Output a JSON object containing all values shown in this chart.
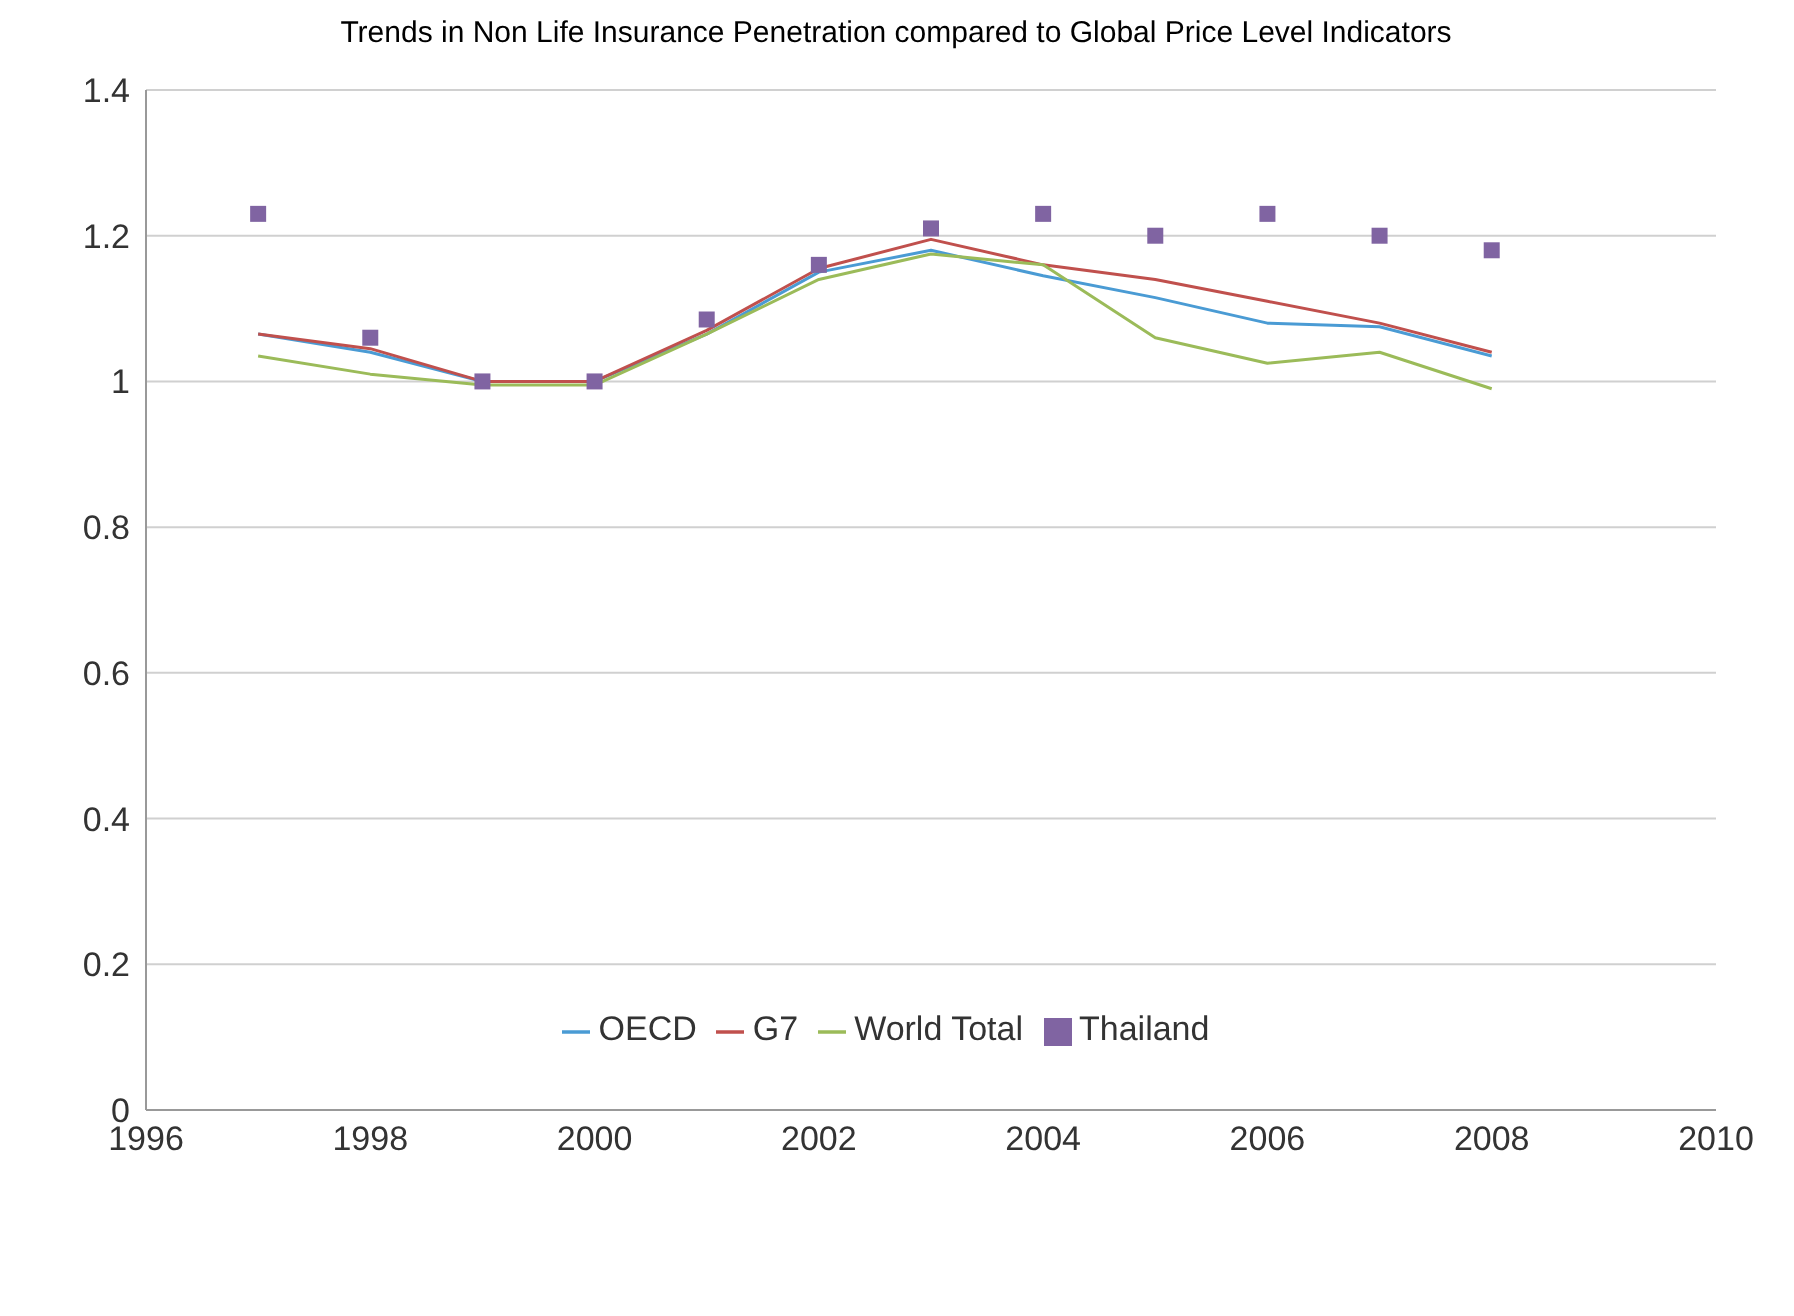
{
  "chart_data": {
    "type": "line",
    "title": "Trends in Non Life Insurance Penetration compared to Global Price Level Indicators",
    "x": [
      1997,
      1998,
      1999,
      2000,
      2001,
      2002,
      2003,
      2004,
      2005,
      2006,
      2007,
      2008
    ],
    "series": [
      {
        "name": "OECD",
        "color": "#4a9bd4",
        "values": [
          1.065,
          1.04,
          1.0,
          1.0,
          1.065,
          1.15,
          1.18,
          1.145,
          1.115,
          1.08,
          1.075,
          1.035
        ]
      },
      {
        "name": "G7",
        "color": "#c0504d",
        "values": [
          1.065,
          1.045,
          1.0,
          1.0,
          1.07,
          1.155,
          1.195,
          1.16,
          1.14,
          1.11,
          1.08,
          1.04
        ]
      },
      {
        "name": "World Total",
        "color": "#9bbb59",
        "values": [
          1.035,
          1.01,
          0.995,
          0.995,
          1.065,
          1.14,
          1.175,
          1.16,
          1.06,
          1.025,
          1.04,
          0.99
        ]
      },
      {
        "name": "Thailand",
        "type": "scatter",
        "marker": "square",
        "color": "#8064a2",
        "values": [
          1.23,
          1.06,
          1.0,
          1.0,
          1.085,
          1.16,
          1.21,
          1.23,
          1.2,
          1.23,
          1.2,
          1.18
        ]
      }
    ],
    "marker": "none",
    "line_style": "solid",
    "xlim": [
      1996,
      2010
    ],
    "xticks": [
      1996,
      1998,
      2000,
      2002,
      2004,
      2006,
      2008,
      2010
    ],
    "ylim": [
      0,
      1.4
    ],
    "yticks": [
      0,
      0.2,
      0.4,
      0.6,
      0.8,
      1,
      1.2,
      1.4
    ],
    "grid": "y",
    "legend": "bottom"
  }
}
